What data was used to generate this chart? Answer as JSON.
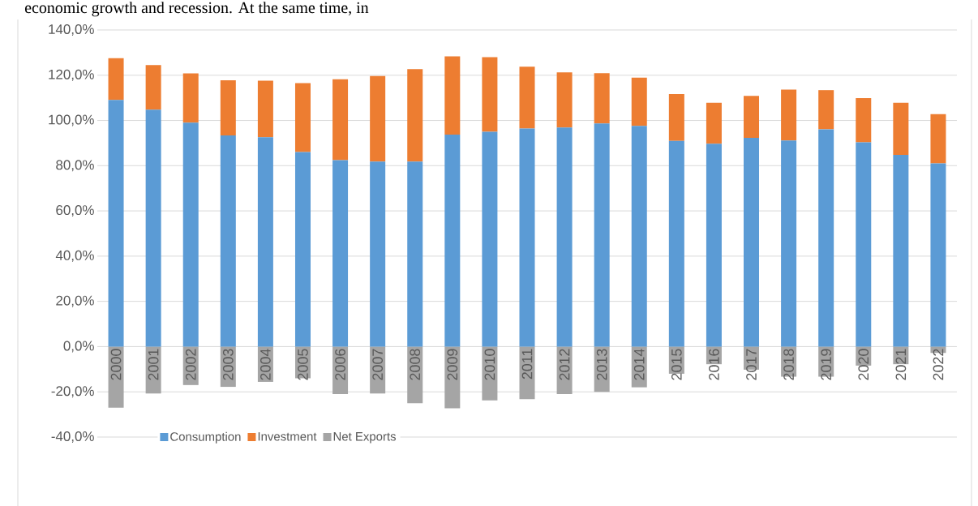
{
  "chart_data": {
    "type": "bar",
    "stacked": true,
    "categories": [
      "2000",
      "2001",
      "2002",
      "2003",
      "2004",
      "2005",
      "2006",
      "2007",
      "2008",
      "2009",
      "2010",
      "2011",
      "2012",
      "2013",
      "2014",
      "2015",
      "2016",
      "2017",
      "2018",
      "2019",
      "2020",
      "2021",
      "2022"
    ],
    "series": [
      {
        "name": "Consumption",
        "color": "#5b9bd5",
        "values": [
          109.1,
          104.8,
          99.0,
          93.4,
          92.6,
          86.0,
          82.4,
          81.8,
          81.8,
          93.7,
          95.0,
          96.4,
          96.9,
          98.7,
          97.6,
          91.0,
          89.7,
          92.3,
          91.1,
          96.1,
          90.3,
          84.8,
          81.0
        ]
      },
      {
        "name": "Investment",
        "color": "#ed7d31",
        "values": [
          18.4,
          19.7,
          21.8,
          24.4,
          25.0,
          30.5,
          35.8,
          37.8,
          40.9,
          34.6,
          33.0,
          27.4,
          24.4,
          22.2,
          21.3,
          20.7,
          18.1,
          18.6,
          22.5,
          17.3,
          19.6,
          23.0,
          21.8
        ]
      },
      {
        "name": "Net Exports",
        "color": "#a5a5a5",
        "values": [
          -27,
          -20.7,
          -17,
          -17.8,
          -15.6,
          -14,
          -21,
          -20.7,
          -25,
          -27.3,
          -23.8,
          -23.2,
          -21,
          -20,
          -18,
          -12,
          -7.8,
          -10.2,
          -13.3,
          -13.3,
          -8.4,
          -7.8,
          -2.8
        ]
      }
    ],
    "ylim": [
      -40,
      140
    ],
    "yticks": [
      {
        "value": -40,
        "label": "-40,0%"
      },
      {
        "value": -20,
        "label": "-20,0%"
      },
      {
        "value": 0,
        "label": "0,0%"
      },
      {
        "value": 20,
        "label": "20,0%"
      },
      {
        "value": 40,
        "label": "40,0%"
      },
      {
        "value": 60,
        "label": "60,0%"
      },
      {
        "value": 80,
        "label": "80,0%"
      },
      {
        "value": 100,
        "label": "100,0%"
      },
      {
        "value": 120,
        "label": "120,0%"
      },
      {
        "value": 140,
        "label": "140,0%"
      }
    ],
    "grid": "y",
    "legend": "bottom",
    "annotations": [
      "economic growth and recession. At the same time, in"
    ]
  }
}
